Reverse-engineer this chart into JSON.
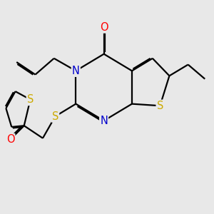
{
  "bg_color": "#e8e8e8",
  "atom_colors": {
    "N": "#0000cc",
    "O": "#ff0000",
    "S": "#ccaa00"
  },
  "bond_color": "#000000",
  "bond_width": 1.6,
  "font_size": 10.5
}
